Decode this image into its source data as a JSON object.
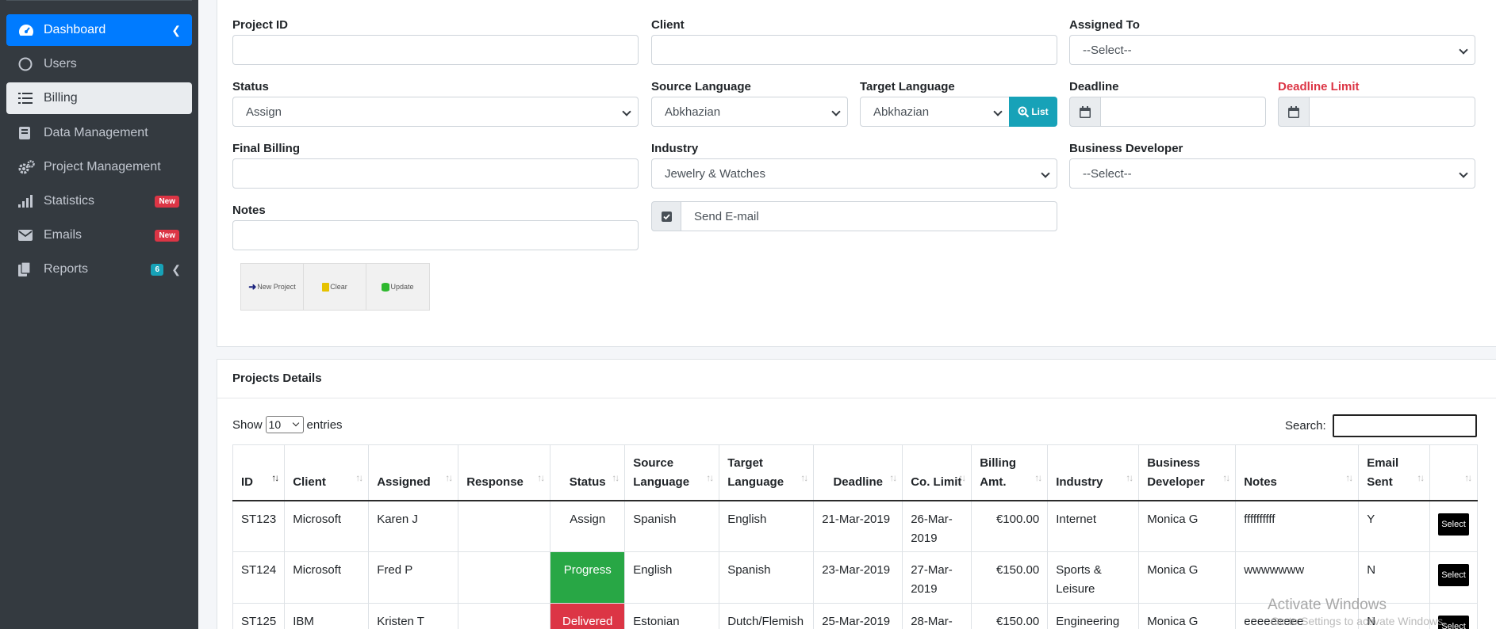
{
  "sidebar": {
    "items": [
      {
        "label": "Dashboard",
        "icon": "tachometer-icon"
      },
      {
        "label": "Users",
        "icon": "circle-icon"
      },
      {
        "label": "Billing",
        "icon": "list-icon"
      },
      {
        "label": "Data Management",
        "icon": "book-icon"
      },
      {
        "label": "Project Management",
        "icon": "gears-icon"
      },
      {
        "label": "Statistics",
        "icon": "signal-icon",
        "badge": "New"
      },
      {
        "label": "Emails",
        "icon": "envelope-icon",
        "badge": "New"
      },
      {
        "label": "Reports",
        "icon": "copy-icon",
        "badge": "6"
      }
    ]
  },
  "form": {
    "project_id_label": "Project ID",
    "client_label": "Client",
    "assigned_to_label": "Assigned To",
    "assigned_to_value": "--Select--",
    "status_label": "Status",
    "status_value": "Assign",
    "source_language_label": "Source Language",
    "source_language_value": "Abkhazian",
    "target_language_label": "Target Language",
    "target_language_value": "Abkhazian",
    "list_button": "List",
    "deadline_label": "Deadline",
    "deadline_limit_label": "Deadline Limit",
    "final_billing_label": "Final Billing",
    "industry_label": "Industry",
    "industry_value": "Jewelry & Watches",
    "business_developer_label": "Business Developer",
    "business_developer_value": "--Select--",
    "notes_label": "Notes",
    "send_email_label": "Send E-mail",
    "buttons": {
      "new_project": "New Project",
      "clear": "Clear",
      "update": "Update"
    }
  },
  "details": {
    "title": "Projects Details",
    "show_label": "Show",
    "entries_value": "10",
    "entries_label": "entries",
    "search_label": "Search:",
    "columns": [
      "ID",
      "Client",
      "Assigned",
      "Response",
      "Status",
      "Source Language",
      "Target Language",
      "Deadline",
      "Co. Limit",
      "Billing Amt.",
      "Industry",
      "Business Developer",
      "Notes",
      "Email Sent",
      ""
    ],
    "rows": [
      {
        "id": "ST123",
        "client": "Microsoft",
        "assigned": "Karen J",
        "response": "",
        "status": "Assign",
        "source": "Spanish",
        "target": "English",
        "deadline": "21-Mar-2019",
        "limit": "26-Mar-2019",
        "billing": "€100.00",
        "industry": "Internet",
        "developer": "Monica G",
        "notes": "ffffffffff",
        "email": "Y",
        "action": "Select"
      },
      {
        "id": "ST124",
        "client": "Microsoft",
        "assigned": "Fred P",
        "response": "",
        "status": "Progress",
        "source": "English",
        "target": "Spanish",
        "deadline": "23-Mar-2019",
        "limit": "27-Mar-2019",
        "billing": "€150.00",
        "industry": "Sports & Leisure",
        "developer": "Monica G",
        "notes": "wwwwwww",
        "email": "N",
        "action": "Select"
      },
      {
        "id": "ST125",
        "client": "IBM",
        "assigned": "Kristen T",
        "response": "",
        "status": "Delivered",
        "source": "Estonian",
        "target": "Dutch/Flemish",
        "deadline": "25-Mar-2019",
        "limit": "28-Mar-",
        "billing": "€150.00",
        "industry": "Engineering",
        "developer": "Monica G",
        "notes": "eeeeeeeee",
        "email": "N",
        "action": "Select"
      }
    ]
  },
  "watermark": {
    "line1": "Activate Windows",
    "line2": "Go to Settings to activate Windows."
  },
  "colors": {
    "sidebar": "#343a40",
    "active": "#007bff",
    "teal": "#17a2b8",
    "danger": "#dc3545",
    "success": "#28a745"
  }
}
